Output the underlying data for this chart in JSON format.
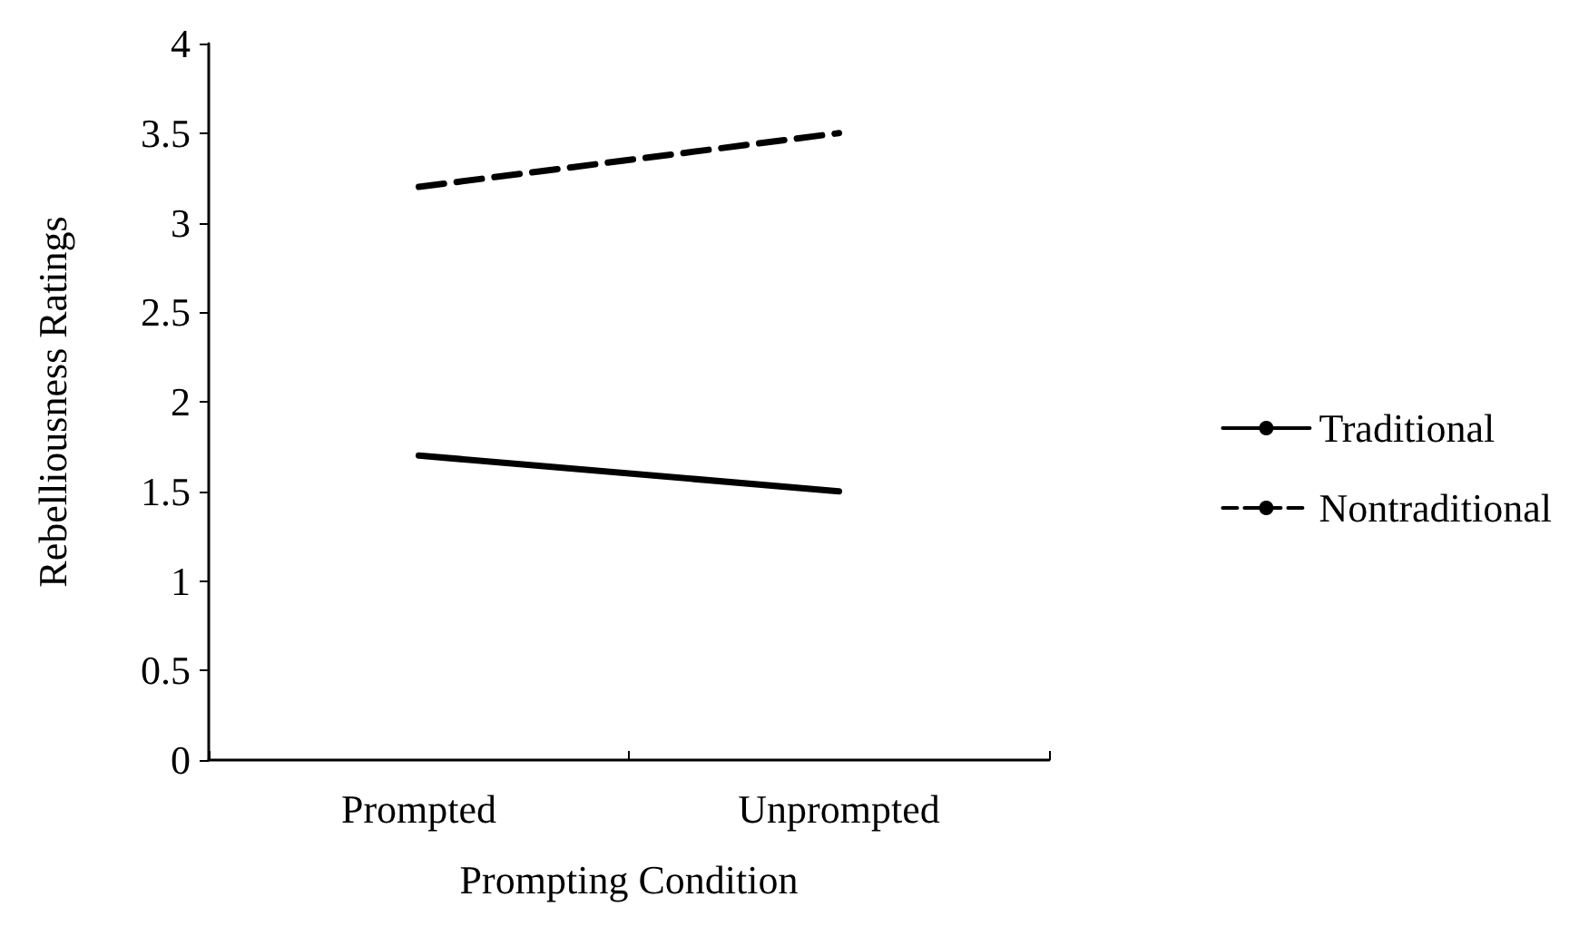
{
  "chart_data": {
    "type": "line",
    "xlabel": "Prompting Condition",
    "ylabel": "Rebelliousness Ratings",
    "categories": [
      "Prompted",
      "Unprompted"
    ],
    "series": [
      {
        "name": "Traditional",
        "color": "#000000",
        "values": [
          1.7,
          1.5
        ],
        "line_style": "solid"
      },
      {
        "name": "Nontraditional",
        "color": "#000000",
        "values": [
          3.2,
          3.5
        ],
        "line_style": "dashed"
      }
    ],
    "ylim": [
      0,
      4
    ],
    "yticks": [
      0,
      0.5,
      1,
      1.5,
      2,
      2.5,
      3,
      3.5,
      4
    ],
    "grid": false,
    "legend": "right",
    "marker": "none"
  }
}
